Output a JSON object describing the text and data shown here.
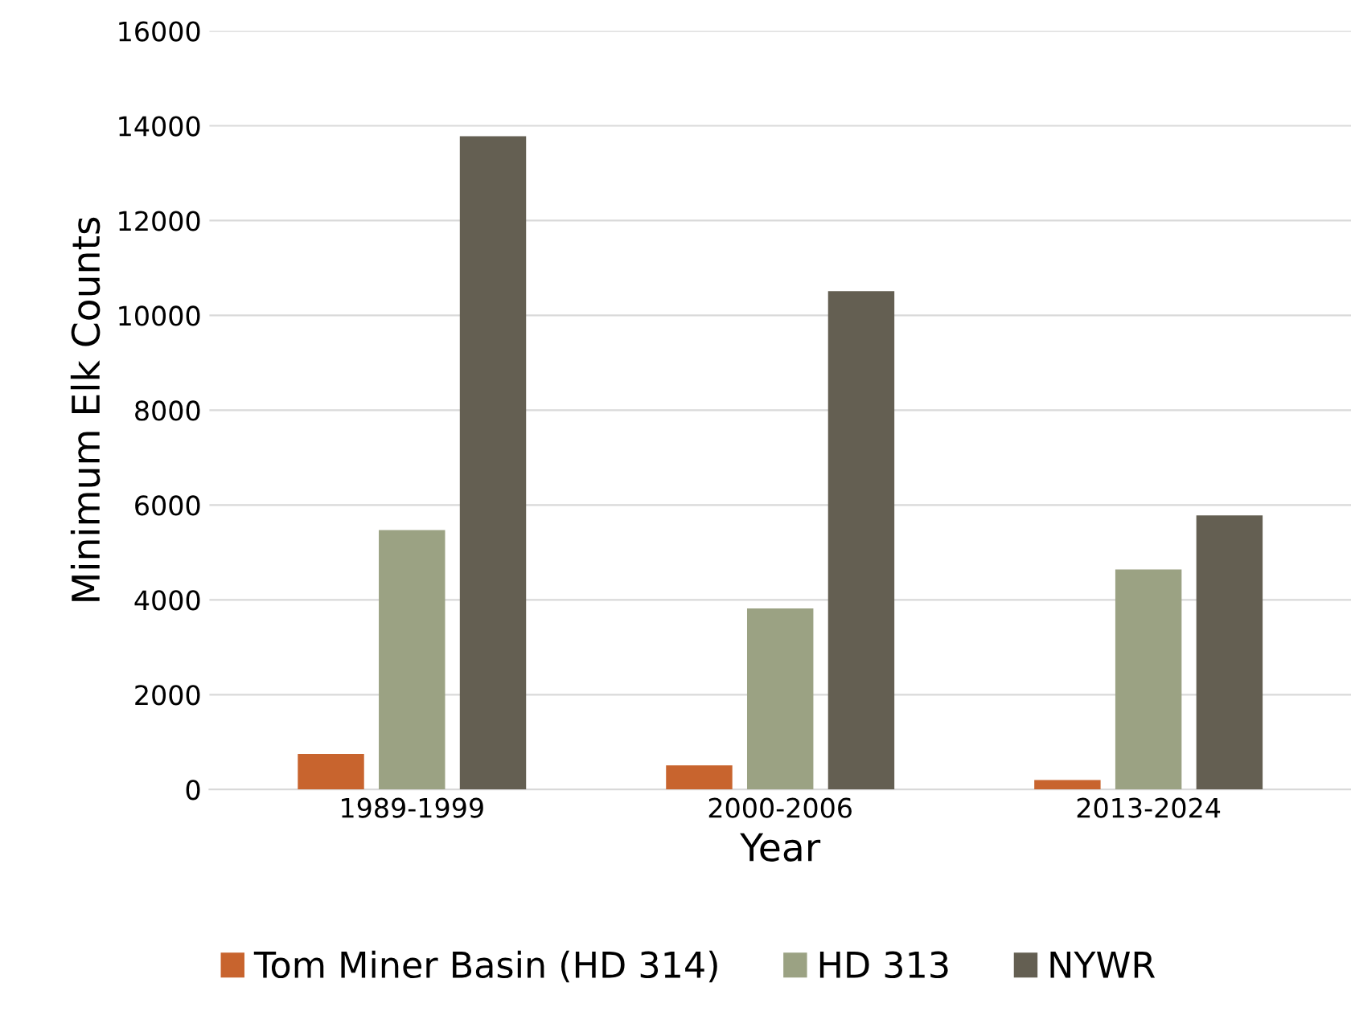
{
  "chart_data": {
    "type": "bar",
    "xlabel": "Year",
    "ylabel": "Minimum Elk Counts",
    "categories": [
      "1989-1999",
      "2000-2006",
      "2013-2024"
    ],
    "series": [
      {
        "name": "Tom Miner Basin (HD 314)",
        "color": "#c8642e",
        "values": [
          750,
          510,
          200
        ]
      },
      {
        "name": "HD 313",
        "color": "#9ba283",
        "values": [
          5470,
          3820,
          4640
        ]
      },
      {
        "name": "NYWR",
        "color": "#645f52",
        "values": [
          13780,
          10510,
          5780
        ]
      }
    ],
    "ylim": [
      0,
      16000
    ],
    "yticks": [
      0,
      2000,
      4000,
      6000,
      8000,
      10000,
      12000,
      14000,
      16000
    ],
    "grid": "y",
    "legend": "bottom"
  }
}
